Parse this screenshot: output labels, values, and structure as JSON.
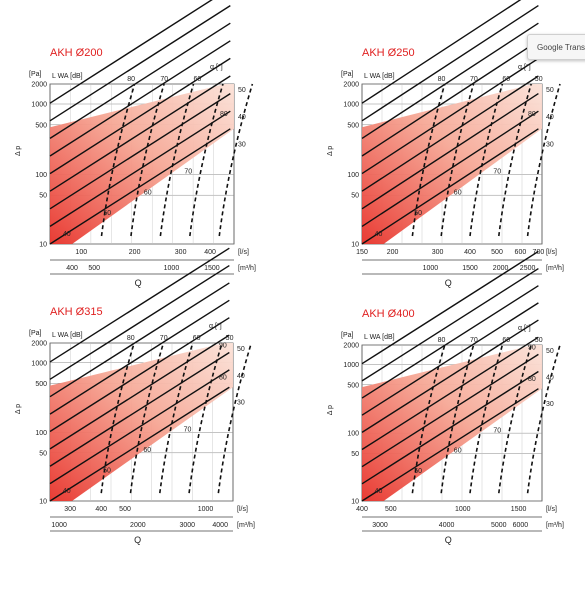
{
  "translate_popup": {
    "label": "Google Translate"
  },
  "colors": {
    "title": "#e02020",
    "band_dark": "#e8322a",
    "band_light": "#fbe2d8",
    "grid": "#8a8a8a",
    "curve": "#111111"
  },
  "chart_data": [
    {
      "type": "line",
      "title": "AKH Ø200",
      "ylabel": "Δ p",
      "yunit": "[Pa]",
      "lwa_label": "L WA [dB]",
      "alpha_label": "α [°]",
      "xlabel": "Q",
      "x_unit_ls": "[l/s]",
      "x_unit_m3h": "[m³/h]",
      "y_ticks": [
        "2000",
        "1000",
        "500",
        "100",
        "50",
        "10"
      ],
      "x_ticks_ls": [
        "100",
        "200",
        "300",
        "400"
      ],
      "x_ticks_m3h": [
        "400",
        "500",
        "1000",
        "1500"
      ],
      "lwa_top_labels": [
        "80",
        "70",
        "60"
      ],
      "lwa_side_labels": [
        "70",
        "60",
        "50",
        "40"
      ],
      "alpha_labels": [
        "50",
        "40",
        "30"
      ],
      "alpha_inner_labels": [
        "80"
      ],
      "series": [
        {
          "label": "50",
          "values": [
            [
              100,
              28
            ],
            [
              450,
              560
            ]
          ]
        },
        {
          "label": "40",
          "values": [
            [
              100,
              16
            ],
            [
              450,
              330
            ]
          ]
        },
        {
          "label": "30",
          "values": [
            [
              100,
              10.5
            ],
            [
              450,
              190
            ]
          ]
        }
      ]
    },
    {
      "type": "line",
      "title": "AKH Ø250",
      "ylabel": "Δ p",
      "yunit": "[Pa]",
      "lwa_label": "L WA [dB]",
      "alpha_label": "α [°]",
      "xlabel": "Q",
      "x_unit_ls": "[l/s]",
      "x_unit_m3h": "[m³/h]",
      "y_ticks": [
        "2000",
        "1000",
        "500",
        "100",
        "50",
        "10"
      ],
      "x_ticks_ls": [
        "150",
        "200",
        "300",
        "400",
        "500",
        "600",
        "700"
      ],
      "x_ticks_m3h": [
        "1000",
        "1500",
        "2000",
        "2500"
      ],
      "lwa_top_labels": [
        "80",
        "70",
        "60",
        "50"
      ],
      "lwa_side_labels": [
        "70",
        "60",
        "50",
        "40"
      ],
      "alpha_labels": [
        "50",
        "40",
        "30"
      ],
      "alpha_inner_labels": [
        "80"
      ],
      "series": [
        {
          "label": "50",
          "values": [
            [
              150,
              28
            ],
            [
              780,
              620
            ]
          ]
        },
        {
          "label": "40",
          "values": [
            [
              150,
              16
            ],
            [
              780,
              360
            ]
          ]
        },
        {
          "label": "30",
          "values": [
            [
              150,
              10
            ],
            [
              780,
              210
            ]
          ]
        }
      ]
    },
    {
      "type": "line",
      "title": "AKH Ø315",
      "ylabel": "Δ p",
      "yunit": "[Pa]",
      "lwa_label": "L WA [dB]",
      "alpha_label": "α [°]",
      "xlabel": "Q",
      "x_unit_ls": "[l/s]",
      "x_unit_m3h": "[m³/h]",
      "y_ticks": [
        "2000",
        "1000",
        "500",
        "100",
        "50",
        "10"
      ],
      "x_ticks_ls": [
        "300",
        "400",
        "500",
        "1000"
      ],
      "x_ticks_m3h": [
        "1000",
        "2000",
        "3000",
        "4000"
      ],
      "lwa_top_labels": [
        "80",
        "70",
        "60",
        "50"
      ],
      "lwa_side_labels": [
        "70",
        "60",
        "50",
        "40"
      ],
      "alpha_labels": [
        "50",
        "40",
        "30"
      ],
      "alpha_inner_labels": [
        "90",
        "80"
      ],
      "series": [
        {
          "label": "50",
          "values": [
            [
              250,
              28
            ],
            [
              1300,
              640
            ]
          ]
        },
        {
          "label": "40",
          "values": [
            [
              250,
              16
            ],
            [
              1300,
              370
            ]
          ]
        },
        {
          "label": "30",
          "values": [
            [
              250,
              10
            ],
            [
              1300,
              215
            ]
          ]
        }
      ]
    },
    {
      "type": "line",
      "title": "AKH  Ø400",
      "ylabel": "Δ p",
      "yunit": "[Pa]",
      "lwa_label": "L WA [dB]",
      "alpha_label": "α [°]",
      "xlabel": "Q",
      "x_unit_ls": "[l/s]",
      "x_unit_m3h": "[m³/h]",
      "y_ticks": [
        "2000",
        "1000",
        "500",
        "100",
        "50",
        "10"
      ],
      "x_ticks_ls": [
        "400",
        "500",
        "1000",
        "1500"
      ],
      "x_ticks_m3h": [
        "3000",
        "4000",
        "5000",
        "6000"
      ],
      "lwa_top_labels": [
        "80",
        "70",
        "60",
        "50"
      ],
      "lwa_side_labels": [
        "70",
        "60",
        "50",
        "40"
      ],
      "alpha_labels": [
        "50",
        "40",
        "30"
      ],
      "alpha_inner_labels": [
        "90",
        "80"
      ],
      "series": [
        {
          "label": "50",
          "values": [
            [
              400,
              28
            ],
            [
              1800,
              640
            ]
          ]
        },
        {
          "label": "40",
          "values": [
            [
              400,
              16
            ],
            [
              1800,
              370
            ]
          ]
        },
        {
          "label": "30",
          "values": [
            [
              400,
              10
            ],
            [
              1800,
              215
            ]
          ]
        }
      ]
    }
  ]
}
